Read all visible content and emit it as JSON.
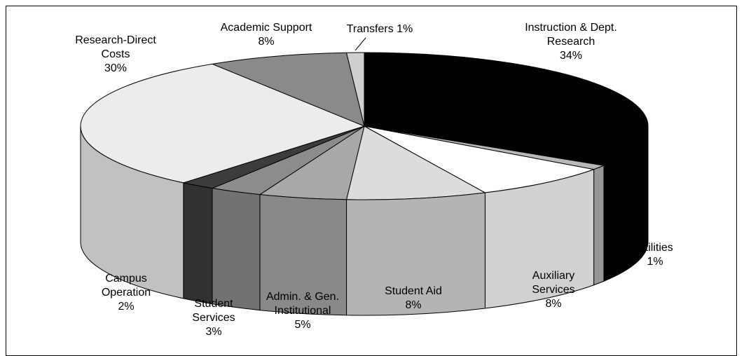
{
  "chart_data": {
    "type": "pie3d",
    "categories": [
      "Instruction & Dept. Research",
      "Utilities",
      "Auxiliary Services",
      "Student Aid",
      "Admin. & Gen. Institutional",
      "Student Services",
      "Campus Operation",
      "Research-Direct Costs",
      "Academic Support",
      "Transfers"
    ],
    "values": [
      34,
      1,
      8,
      8,
      5,
      3,
      2,
      30,
      8,
      1
    ],
    "value_labels": [
      "34%",
      "1%",
      "8%",
      "8%",
      "5%",
      "3%",
      "2%",
      "30%",
      "8%",
      "1%"
    ],
    "colors": [
      "#000000",
      "#b8b8b8",
      "#ffffff",
      "#dcdcdc",
      "#a8a8a8",
      "#8c8c8c",
      "#3c3c3c",
      "#ececec",
      "#8a8a8a",
      "#cfcfcf"
    ]
  }
}
